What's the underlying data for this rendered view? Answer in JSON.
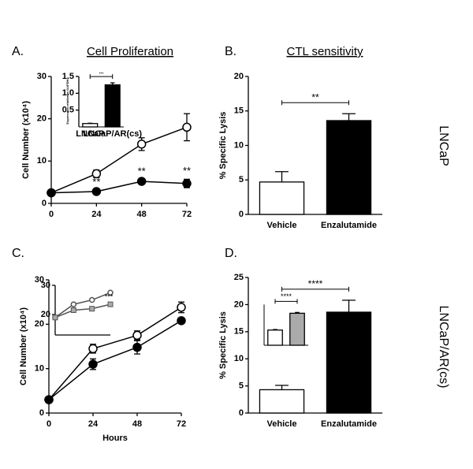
{
  "chart_data": [
    {
      "type": "line",
      "panel": "A.",
      "title": "Cell Proliferation",
      "ylabel": "Cell Number (x10⁴)",
      "x": [
        0,
        24,
        48,
        72
      ],
      "xlim": [
        0,
        72
      ],
      "xticks": [
        0,
        24,
        48,
        72
      ],
      "ylim": [
        0,
        30
      ],
      "yticks": [
        0,
        10,
        20,
        30
      ],
      "series": [
        {
          "color": "#000000",
          "marker": "open",
          "values": [
            2.5,
            7,
            14,
            18
          ],
          "errors": [
            0.4,
            0.9,
            1.5,
            3.2
          ]
        },
        {
          "color": "#000000",
          "marker": "filled",
          "values": [
            2.5,
            2.8,
            5.2,
            4.7
          ],
          "errors": [
            0.3,
            0.3,
            0.4,
            1
          ]
        }
      ],
      "annotations": [
        "**",
        "**",
        "**"
      ],
      "inset": {
        "type": "bar",
        "ylabel": "Expression relative to GAPDH",
        "categories": [
          "LNCaP",
          "LNCaP/AR(cs)"
        ],
        "values": [
          0.1,
          1.25
        ],
        "errors": [
          0.01,
          0.06
        ],
        "colors": [
          "#ffffff",
          "#000000"
        ],
        "ylim": [
          0,
          1.5
        ],
        "yticks": [
          {
            "value": 0.5,
            "label": "0.5"
          },
          {
            "value": 1,
            "label": "1.0"
          },
          {
            "value": 1.5,
            "label": "1.5"
          }
        ],
        "annotation": "***"
      }
    },
    {
      "type": "bar",
      "panel": "B.",
      "title": "CTL sensitivity",
      "side_label": "LNCaP",
      "ylabel": "% Specific Lysis",
      "categories": [
        "Vehicle",
        "Enzalutamide"
      ],
      "values": [
        4.7,
        13.6
      ],
      "errors": [
        1.5,
        1.0
      ],
      "colors": [
        "#ffffff",
        "#000000"
      ],
      "ylim": [
        0,
        20
      ],
      "yticks": [
        0,
        5,
        10,
        15,
        20
      ],
      "annotation": "**"
    },
    {
      "type": "line",
      "panel": "C.",
      "ylabel": "Cell Number (x10⁴)",
      "xlabel": "Hours",
      "x": [
        0,
        24,
        48,
        72
      ],
      "xlim": [
        0,
        72
      ],
      "xticks": [
        0,
        24,
        48,
        72
      ],
      "ylim": [
        0,
        30
      ],
      "yticks": [
        0,
        10,
        20,
        30
      ],
      "series": [
        {
          "color": "#000000",
          "marker": "open",
          "values": [
            3,
            14.5,
            17.5,
            23.8
          ],
          "errors": [
            0.3,
            1,
            1,
            1.2
          ]
        },
        {
          "color": "#000000",
          "marker": "filled",
          "values": [
            3,
            11,
            14.8,
            20.8
          ],
          "errors": [
            0.3,
            1.2,
            1.5,
            0.5
          ]
        }
      ],
      "inset": {
        "type": "line",
        "x": [
          0,
          24,
          48,
          72
        ],
        "xlim": [
          0,
          72
        ],
        "ylim": [
          13,
          30
        ],
        "yticks": [
          20,
          30
        ],
        "series": [
          {
            "color": "#555555",
            "marker": "open",
            "values": [
              19,
              23.5,
              25,
              27.5
            ]
          },
          {
            "color": "#555555",
            "marker": "square",
            "values": [
              19,
              21.5,
              22,
              23.5
            ]
          }
        ],
        "annotation": "***"
      }
    },
    {
      "type": "bar",
      "panel": "D.",
      "side_label": "LNCaP/AR(cs)",
      "ylabel": "% Specific Lysis",
      "categories": [
        "Vehicle",
        "Enzalutamide"
      ],
      "values": [
        4.3,
        18.6
      ],
      "errors": [
        0.8,
        2.2
      ],
      "colors": [
        "#ffffff",
        "#000000"
      ],
      "ylim": [
        0,
        25
      ],
      "yticks": [
        0,
        5,
        10,
        15,
        20,
        25
      ],
      "annotation": "****",
      "inset": {
        "type": "bar",
        "values": [
          15.3,
          18.4
        ],
        "errors": [
          0.1,
          0.15
        ],
        "colors": [
          "#ffffff",
          "#aaaaaa"
        ],
        "ylim": [
          12.5,
          20
        ],
        "annotation": "****"
      }
    }
  ]
}
